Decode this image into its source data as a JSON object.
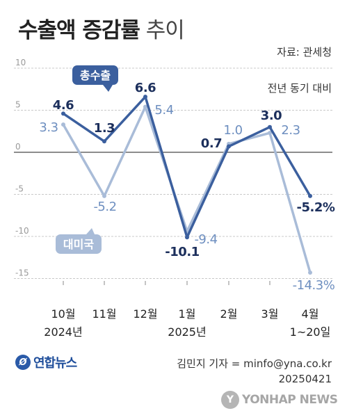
{
  "title": {
    "strong": "수출액 증감률",
    "light": "추이"
  },
  "source": "자료: 관세청",
  "basis": "전년 동기 대비",
  "x_labels": [
    "10월",
    "11월",
    "12월",
    "1월",
    "2월",
    "3월",
    "4월"
  ],
  "year_labels": [
    "2024년",
    "2025년",
    "1~20일"
  ],
  "credit": {
    "author": "김민지 기자 = minfo@yna.co.kr",
    "date": "20250421"
  },
  "logo": {
    "mark": "Ø",
    "text": "연합뉴스"
  },
  "watermark": {
    "mark": "Y",
    "text": "YONHAP NEWS"
  },
  "chart_data": {
    "type": "line",
    "categories": [
      "10월",
      "11월",
      "12월",
      "1월",
      "2월",
      "3월",
      "4월"
    ],
    "ylim": [
      -17,
      10
    ],
    "yticks": [
      10,
      5,
      0,
      -5,
      -10,
      -15
    ],
    "ytick_labels": [
      "10",
      "5",
      "0",
      "-5",
      "-10",
      "-15"
    ],
    "series": [
      {
        "name": "총수출",
        "values": [
          4.6,
          1.3,
          6.6,
          -10.1,
          0.7,
          3.0,
          -5.2
        ],
        "labels": [
          "4.6",
          "1.3",
          "6.6",
          "-10.1",
          "0.7",
          "3.0",
          "-5.2%"
        ],
        "color": "#3b5f9e",
        "label_color": "#1c2f5c"
      },
      {
        "name": "대미국",
        "values": [
          3.3,
          -5.2,
          5.4,
          -9.4,
          1.0,
          2.3,
          -14.3
        ],
        "labels": [
          "3.3",
          "-5.2",
          "5.4",
          "-9.4",
          "1.0",
          "2.3",
          "-14.3%"
        ],
        "color": "#a9bcd8",
        "label_color": "#6e8fc0"
      }
    ],
    "grid": true,
    "legend": "inline callouts"
  }
}
